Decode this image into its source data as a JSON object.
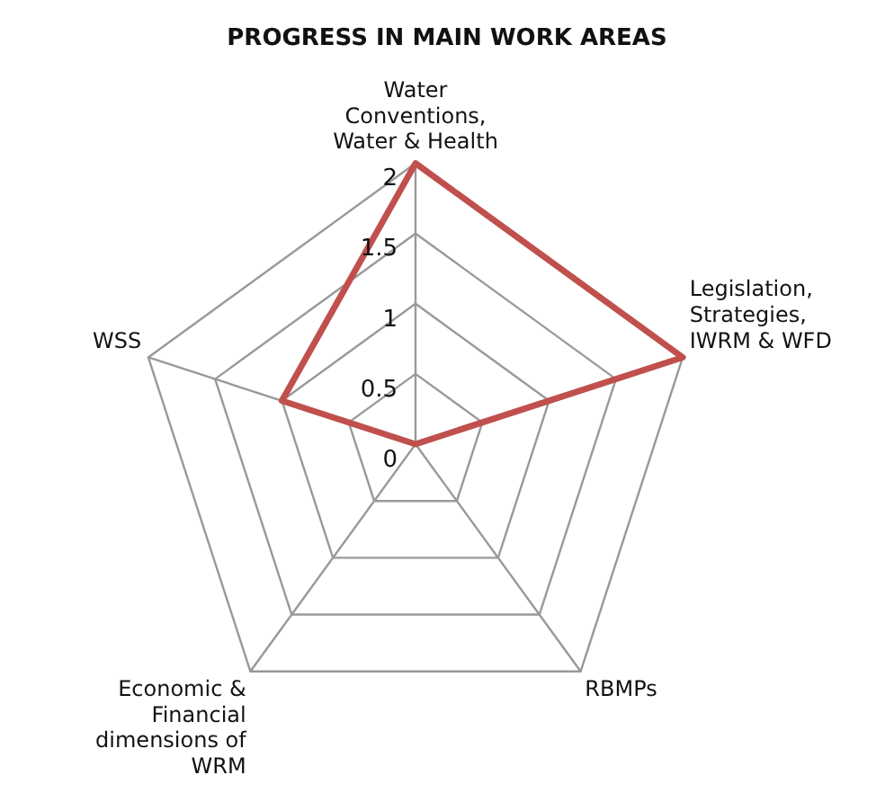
{
  "chart_data": {
    "type": "radar",
    "title": "PROGRESS IN MAIN WORK AREAS",
    "categories": [
      "Water Conventions, Water & Health",
      "Legislation, Strategies, IWRM & WFD",
      "RBMPs",
      "Economic & Financial dimensions of WRM",
      "WSS"
    ],
    "series": [
      {
        "color": "#c0504d",
        "values": [
          2,
          2,
          0,
          0,
          1
        ]
      }
    ],
    "ylim": [
      0,
      2
    ],
    "yticks": [
      0,
      0.5,
      1,
      1.5,
      2
    ],
    "grid": true,
    "legend": false,
    "marker": "none"
  }
}
